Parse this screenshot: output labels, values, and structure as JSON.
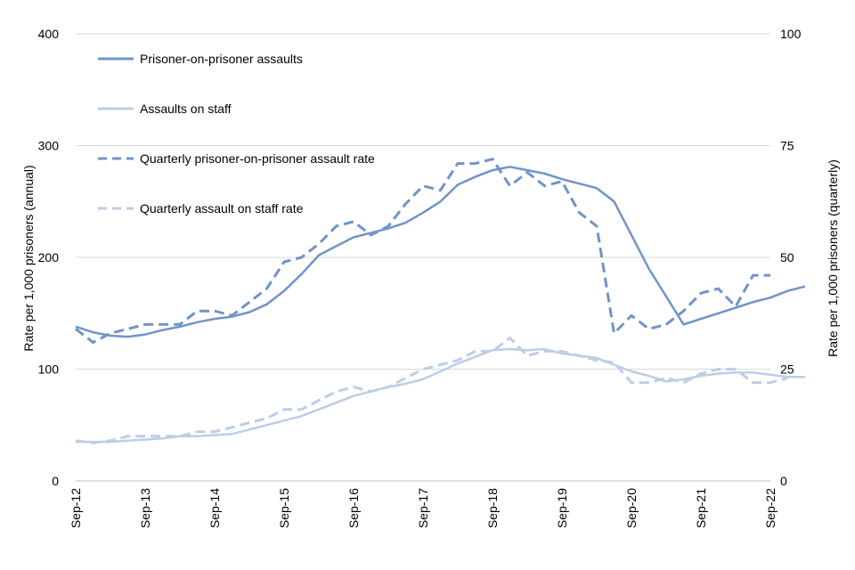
{
  "chart_data": {
    "type": "line",
    "title": "",
    "xlabel": "",
    "ylabel_left": "Rate per 1,000 prisoners (annual)",
    "ylabel_right": "Rate per 1,000 prisoners (quarterly)",
    "ylim_left": [
      0,
      400
    ],
    "ylim_right": [
      0,
      100
    ],
    "yticks_left": [
      0,
      100,
      200,
      300,
      400
    ],
    "yticks_right": [
      0,
      25,
      50,
      75,
      100
    ],
    "grid": true,
    "legend_position": "top-left",
    "x_tick_labels": [
      "Sep-12",
      "Sep-13",
      "Sep-14",
      "Sep-15",
      "Sep-16",
      "Sep-17",
      "Sep-18",
      "Sep-19",
      "Sep-20",
      "Sep-21",
      "Sep-22"
    ],
    "series": [
      {
        "name": "Prisoner-on-prisoner assaults",
        "axis": "left",
        "style": "solid",
        "color": "#7094c8",
        "values": [
          138,
          133,
          130,
          129,
          131,
          135,
          138,
          142,
          145,
          147,
          151,
          158,
          170,
          185,
          202,
          210,
          218,
          222,
          226,
          231,
          240,
          250,
          265,
          272,
          278,
          281,
          278,
          275,
          270,
          266,
          262,
          250,
          220,
          190,
          165,
          140,
          145,
          150,
          155,
          160,
          164,
          170,
          174
        ]
      },
      {
        "name": "Assaults on staff",
        "axis": "left",
        "style": "solid",
        "color": "#bccde8",
        "values": [
          35,
          35,
          35,
          36,
          37,
          38,
          40,
          40,
          41,
          42,
          46,
          50,
          54,
          58,
          64,
          70,
          76,
          80,
          84,
          87,
          91,
          98,
          105,
          111,
          117,
          118,
          117,
          118,
          114,
          112,
          110,
          104,
          98,
          94,
          89,
          91,
          94,
          96,
          97,
          97,
          95,
          93,
          93
        ]
      },
      {
        "name": "Quarterly prisoner-on-prisoner assault rate",
        "axis": "right",
        "style": "dashed",
        "color": "#7094c8",
        "values": [
          34,
          31,
          33,
          34,
          35,
          35,
          35,
          38,
          38,
          37,
          40,
          43,
          49,
          50,
          53,
          57,
          58,
          55,
          57,
          62,
          66,
          65,
          71,
          71,
          72,
          66,
          69,
          66,
          67,
          60,
          57,
          33,
          37,
          34,
          35,
          38,
          42,
          43,
          39,
          46,
          46
        ]
      },
      {
        "name": "Quarterly assault on staff rate",
        "axis": "right",
        "style": "dashed",
        "color": "#bccde8",
        "values": [
          9,
          8.5,
          9,
          10,
          10,
          10,
          10,
          11,
          11,
          12,
          13,
          14,
          16,
          16,
          18,
          20,
          21,
          20,
          21,
          23,
          25,
          26,
          27,
          29,
          29,
          32,
          28,
          29,
          29,
          28,
          27,
          26.5,
          22,
          22,
          23,
          22,
          24,
          25,
          25,
          22,
          22,
          23
        ]
      }
    ]
  }
}
